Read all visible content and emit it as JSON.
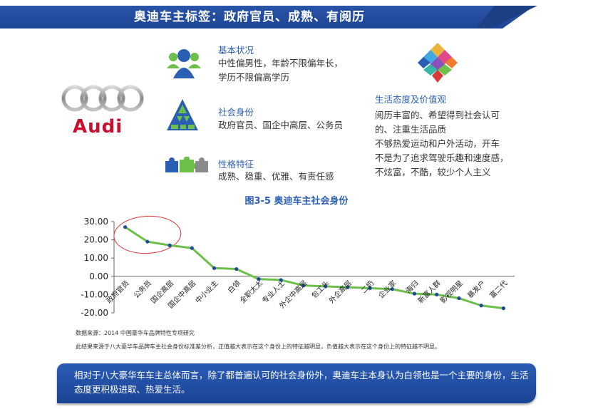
{
  "title": "奥迪车主标签：政府官员、成熟、有阅历",
  "logo": {
    "brand": "Audi",
    "wordmark": "Audi"
  },
  "sections": {
    "basic": {
      "icon": "people-icon",
      "heading": "基本状况",
      "lines": [
        "中性偏男性，年龄不限偏年长，",
        "学历不限偏高学历"
      ]
    },
    "identity": {
      "icon": "pyramid-icon",
      "heading": "社会身份",
      "lines": [
        "政府官员、国企中高层、公务员"
      ]
    },
    "personality": {
      "icon": "puzzle-icon",
      "heading": "性格特征",
      "lines": [
        "成熟、稳重、优雅、有责任感"
      ]
    },
    "values": {
      "icon": "diamond-icon",
      "heading": "生活态度及价值观",
      "lines": [
        "阅历丰富的、希望得到社会认可",
        "的、注重生活品质",
        "不够热爱运动和户外活动，开车",
        "不是为了追求驾驶乐趣和速度感，",
        "不炫富，不酷，较少个人主义"
      ]
    }
  },
  "chart_title": "图3-5 奥迪车主社会身份",
  "chart_data": {
    "type": "line",
    "categories": [
      "政府官员",
      "公务员",
      "国企高层",
      "国企中高层",
      "中小业主",
      "白领",
      "全职太太",
      "专业人士",
      "外企中高层",
      "包工头",
      "外企高层",
      "二奶",
      "企业家",
      "海归",
      "新富人群",
      "影视明星",
      "暴发户",
      "富二代"
    ],
    "values": [
      27,
      19,
      17,
      15.5,
      4.5,
      4,
      -1.5,
      -2,
      -5,
      -5.5,
      -6,
      -6.5,
      -7,
      -9.5,
      -10,
      -12,
      -16,
      -17.5
    ],
    "yticks": [
      "30.00",
      "20.00",
      "10.00",
      "0.00",
      "-10.00",
      "-20.00"
    ],
    "ylim": [
      -20,
      30
    ],
    "line_color": "#6cc04a",
    "point_color": "#1f4a9c",
    "highlight_color": "#d9383a",
    "highlighted_categories": [
      "政府官员",
      "公务员",
      "国企高层"
    ]
  },
  "footnotes": [
    "数据来源：2014 中国豪华车品牌特性专项研究",
    "此结果来源于八大豪华车品牌车主社会身份标准差分析，正值越大表示在这个身份上的特征越明显，负值越大表示在这个身份上的特征越不明显。"
  ],
  "summary": "相对于八大豪华车车主总体而言，除了都普遍认可的社会身份外，奥迪车主本身认为白领也是一个主要的身份，生活态度更积极进取、热爱生活。"
}
